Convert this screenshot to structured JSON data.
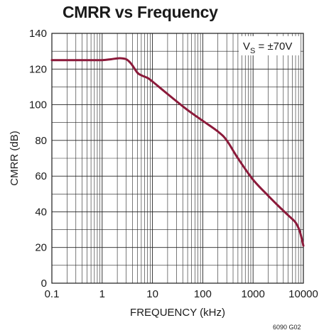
{
  "chart_data": {
    "type": "line",
    "title": "CMRR vs Frequency",
    "xlabel": "FREQUENCY (kHz)",
    "ylabel": "CMRR (dB)",
    "xscale": "log",
    "xlim": [
      0.1,
      10000
    ],
    "ylim": [
      0,
      140
    ],
    "x_tick_labels": [
      "0.1",
      "1",
      "10",
      "100",
      "1000",
      "10000"
    ],
    "y_tick_labels": [
      "0",
      "20",
      "40",
      "60",
      "80",
      "100",
      "120",
      "140"
    ],
    "grid": true,
    "series": [
      {
        "color": "#8b1a3a",
        "x": [
          0.1,
          0.5,
          1,
          1.5,
          2,
          2.5,
          3,
          3.5,
          4,
          5,
          6,
          8,
          10,
          20,
          50,
          100,
          200,
          300,
          500,
          1000,
          2000,
          3000,
          5000,
          7000,
          8500,
          10000
        ],
        "y": [
          125,
          125,
          125,
          125.5,
          126,
          126,
          125.5,
          124,
          122,
          118,
          116.5,
          115,
          113,
          106,
          97,
          91,
          85,
          80,
          70,
          58,
          49,
          44,
          38,
          34,
          29,
          21
        ]
      }
    ],
    "annotations": [
      {
        "main": "V",
        "sub": "S",
        "rest": " = ±70V",
        "position": "top-right"
      }
    ]
  },
  "figure_code": "6090 G02"
}
